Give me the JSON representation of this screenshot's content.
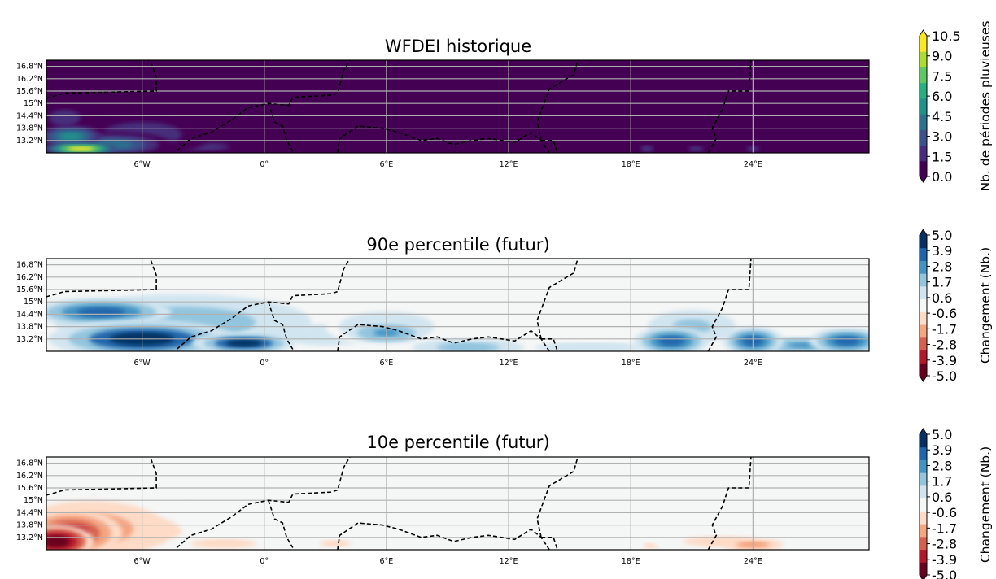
{
  "chart_data": [
    {
      "type": "heatmap",
      "title": "WFDEI historique",
      "x_ticks": [
        "6°W",
        "0°",
        "6°E",
        "12°E",
        "18°E",
        "24°E"
      ],
      "x_tick_values": [
        -6,
        0,
        6,
        12,
        18,
        24
      ],
      "y_ticks": [
        "16.8°N",
        "16.2°N",
        "15.6°N",
        "15°N",
        "14.4°N",
        "13.8°N",
        "13.2°N"
      ],
      "y_tick_values": [
        16.8,
        16.2,
        15.6,
        15.0,
        14.4,
        13.8,
        13.2
      ],
      "xlim": [
        -10.7,
        29.7
      ],
      "ylim": [
        12.6,
        17.1
      ],
      "grid": true,
      "background_color": "#440154",
      "features": [
        {
          "lon": -9.0,
          "lat": 12.8,
          "value": 10.0,
          "rx": 1.6,
          "ry": 0.28
        },
        {
          "lon": -9.5,
          "lat": 13.4,
          "value": 5.5,
          "rx": 1.3,
          "ry": 0.45
        },
        {
          "lon": -7.5,
          "lat": 13.0,
          "value": 4.0,
          "rx": 2.6,
          "ry": 0.55
        },
        {
          "lon": -6.0,
          "lat": 13.5,
          "value": 2.0,
          "rx": 3.0,
          "ry": 0.9
        },
        {
          "lon": -9.8,
          "lat": 14.3,
          "value": 1.8,
          "rx": 1.2,
          "ry": 0.6
        },
        {
          "lon": -3.0,
          "lat": 12.9,
          "value": 1.6,
          "rx": 2.0,
          "ry": 0.3
        },
        {
          "lon": 18.8,
          "lat": 12.8,
          "value": 1.6,
          "rx": 0.5,
          "ry": 0.25
        },
        {
          "lon": 21.2,
          "lat": 12.8,
          "value": 1.6,
          "rx": 0.6,
          "ry": 0.2
        },
        {
          "lon": 24.0,
          "lat": 12.8,
          "value": 1.6,
          "rx": 0.5,
          "ry": 0.2
        }
      ],
      "colorbar": {
        "label": "Nb. de périodes pluvieuses",
        "ticks": [
          "10.5",
          "9.0",
          "7.5",
          "6.0",
          "4.5",
          "3.0",
          "1.5",
          "0.0"
        ],
        "min": 0.0,
        "max": 10.5,
        "colors": [
          "#440154",
          "#472d7b",
          "#3b528b",
          "#2c728e",
          "#21918c",
          "#28ae80",
          "#5ec962",
          "#addc30",
          "#fde725"
        ]
      }
    },
    {
      "type": "heatmap",
      "title": "90e percentile (futur)",
      "x_ticks": [
        "6°W",
        "0°",
        "6°E",
        "12°E",
        "18°E",
        "24°E"
      ],
      "x_tick_values": [
        -6,
        0,
        6,
        12,
        18,
        24
      ],
      "y_ticks": [
        "16.8°N",
        "16.2°N",
        "15.6°N",
        "15°N",
        "14.4°N",
        "13.8°N",
        "13.2°N"
      ],
      "y_tick_values": [
        16.8,
        16.2,
        15.6,
        15.0,
        14.4,
        13.8,
        13.2
      ],
      "xlim": [
        -10.7,
        29.7
      ],
      "ylim": [
        12.6,
        17.1
      ],
      "grid": true,
      "background_color": "#f5f6f6",
      "features": [
        {
          "lon": -6.0,
          "lat": 13.2,
          "value": 4.5,
          "rx": 4.0,
          "ry": 0.8
        },
        {
          "lon": -1.0,
          "lat": 13.0,
          "value": 4.5,
          "rx": 2.2,
          "ry": 0.45
        },
        {
          "lon": -8.0,
          "lat": 14.5,
          "value": 3.2,
          "rx": 3.0,
          "ry": 0.6
        },
        {
          "lon": -4.0,
          "lat": 14.0,
          "value": 2.2,
          "rx": 5.5,
          "ry": 1.2
        },
        {
          "lon": 6.0,
          "lat": 13.5,
          "value": 2.8,
          "rx": 1.6,
          "ry": 0.45
        },
        {
          "lon": 6.0,
          "lat": 13.8,
          "value": 1.2,
          "rx": 2.6,
          "ry": 0.8
        },
        {
          "lon": 3.0,
          "lat": 13.4,
          "value": 0.9,
          "rx": 3.5,
          "ry": 0.8
        },
        {
          "lon": 10.0,
          "lat": 12.8,
          "value": 2.0,
          "rx": 2.4,
          "ry": 0.35
        },
        {
          "lon": 16.0,
          "lat": 12.8,
          "value": 1.2,
          "rx": 3.0,
          "ry": 0.25
        },
        {
          "lon": 20.0,
          "lat": 13.1,
          "value": 3.5,
          "rx": 1.6,
          "ry": 0.6
        },
        {
          "lon": 21.0,
          "lat": 13.8,
          "value": 1.5,
          "rx": 2.4,
          "ry": 0.9
        },
        {
          "lon": 24.0,
          "lat": 13.1,
          "value": 4.0,
          "rx": 1.3,
          "ry": 0.6
        },
        {
          "lon": 28.6,
          "lat": 13.1,
          "value": 4.0,
          "rx": 1.6,
          "ry": 0.55
        },
        {
          "lon": 26.5,
          "lat": 12.9,
          "value": 3.0,
          "rx": 2.0,
          "ry": 0.35
        }
      ],
      "colorbar": {
        "label": "Changement (Nb.)",
        "ticks": [
          "5.0",
          "3.9",
          "2.8",
          "1.7",
          "0.6",
          "-0.6",
          "-1.7",
          "-2.8",
          "-3.9",
          "-5.0"
        ],
        "min": -5.0,
        "max": 5.0,
        "colors": [
          "#67001f",
          "#b2182b",
          "#d6604d",
          "#f4a582",
          "#fddbc7",
          "#f5f6f6",
          "#d1e5f0",
          "#92c5de",
          "#4393c3",
          "#2166ac",
          "#053061"
        ]
      }
    },
    {
      "type": "heatmap",
      "title": "10e percentile (futur)",
      "x_ticks": [
        "6°W",
        "0°",
        "6°E",
        "12°E",
        "18°E",
        "24°E"
      ],
      "x_tick_values": [
        -6,
        0,
        6,
        12,
        18,
        24
      ],
      "y_ticks": [
        "16.8°N",
        "16.2°N",
        "15.6°N",
        "15°N",
        "14.4°N",
        "13.8°N",
        "13.2°N"
      ],
      "y_tick_values": [
        16.8,
        16.2,
        15.6,
        15.0,
        14.4,
        13.8,
        13.2
      ],
      "xlim": [
        -10.7,
        29.7
      ],
      "ylim": [
        12.6,
        17.1
      ],
      "grid": true,
      "background_color": "#f5f6f6",
      "features": [
        {
          "lon": -10.2,
          "lat": 13.0,
          "value": -4.6,
          "rx": 1.6,
          "ry": 0.7
        },
        {
          "lon": -9.5,
          "lat": 13.4,
          "value": -3.2,
          "rx": 2.2,
          "ry": 1.0
        },
        {
          "lon": -8.5,
          "lat": 13.6,
          "value": -2.0,
          "rx": 3.2,
          "ry": 1.2
        },
        {
          "lon": -7.0,
          "lat": 13.5,
          "value": -0.9,
          "rx": 4.5,
          "ry": 1.3
        },
        {
          "lon": -2.0,
          "lat": 12.9,
          "value": -0.9,
          "rx": 2.5,
          "ry": 0.35
        },
        {
          "lon": 3.5,
          "lat": 12.9,
          "value": -0.8,
          "rx": 1.2,
          "ry": 0.25
        },
        {
          "lon": 19.0,
          "lat": 12.8,
          "value": -0.9,
          "rx": 0.6,
          "ry": 0.2
        },
        {
          "lon": 22.5,
          "lat": 13.0,
          "value": -0.9,
          "rx": 3.0,
          "ry": 0.4
        },
        {
          "lon": 24.0,
          "lat": 12.85,
          "value": -2.0,
          "rx": 1.3,
          "ry": 0.25
        }
      ],
      "colorbar": {
        "label": "Changement (Nb.)",
        "ticks": [
          "5.0",
          "3.9",
          "2.8",
          "1.7",
          "0.6",
          "-0.6",
          "-1.7",
          "-2.8",
          "-3.9",
          "-5.0"
        ],
        "min": -5.0,
        "max": 5.0,
        "colors": [
          "#67001f",
          "#b2182b",
          "#d6604d",
          "#f4a582",
          "#fddbc7",
          "#f5f6f6",
          "#d1e5f0",
          "#92c5de",
          "#4393c3",
          "#2166ac",
          "#053061"
        ]
      }
    }
  ],
  "borders": [
    [
      [
        -10.7,
        15.25
      ],
      [
        -9.8,
        15.5
      ],
      [
        -7.6,
        15.55
      ],
      [
        -5.3,
        15.6
      ],
      [
        -5.3,
        16.3
      ],
      [
        -5.6,
        17.1
      ]
    ],
    [
      [
        -4.3,
        12.7
      ],
      [
        -3.6,
        13.3
      ],
      [
        -2.6,
        13.6
      ],
      [
        -1.6,
        14.2
      ],
      [
        -0.8,
        14.8
      ],
      [
        0.2,
        15.0
      ],
      [
        1.2,
        14.9
      ],
      [
        1.4,
        15.3
      ],
      [
        3.3,
        15.4
      ],
      [
        3.6,
        15.5
      ],
      [
        3.9,
        16.6
      ],
      [
        4.2,
        17.1
      ]
    ],
    [
      [
        0.2,
        15.0
      ],
      [
        0.5,
        14.1
      ],
      [
        0.9,
        13.9
      ],
      [
        1.1,
        13.2
      ],
      [
        1.4,
        12.7
      ]
    ],
    [
      [
        3.6,
        12.6
      ],
      [
        3.7,
        13.3
      ],
      [
        4.6,
        13.9
      ],
      [
        5.8,
        13.8
      ],
      [
        6.6,
        13.6
      ],
      [
        7.7,
        13.2
      ],
      [
        8.5,
        13.3
      ],
      [
        9.3,
        13.0
      ],
      [
        10.2,
        13.2
      ],
      [
        11.0,
        13.3
      ],
      [
        12.3,
        13.1
      ],
      [
        13.1,
        13.6
      ],
      [
        13.6,
        13.2
      ],
      [
        14.0,
        12.6
      ]
    ],
    [
      [
        13.6,
        13.2
      ],
      [
        14.2,
        13.2
      ],
      [
        14.4,
        12.6
      ]
    ],
    [
      [
        13.6,
        13.2
      ],
      [
        13.4,
        14.1
      ],
      [
        14.0,
        15.7
      ],
      [
        15.2,
        16.4
      ],
      [
        15.4,
        17.1
      ]
    ],
    [
      [
        21.8,
        12.6
      ],
      [
        22.2,
        13.3
      ],
      [
        22.0,
        13.8
      ],
      [
        22.5,
        14.7
      ],
      [
        22.8,
        15.6
      ],
      [
        23.8,
        15.6
      ],
      [
        23.9,
        17.1
      ]
    ]
  ]
}
